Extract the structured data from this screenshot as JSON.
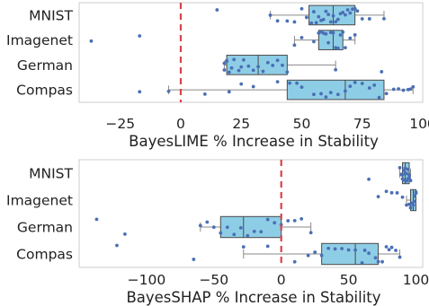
{
  "colors": {
    "box_fill": "#8ecde6",
    "box_edge": "#4a4a4a",
    "point": "#4a6fb5",
    "zero_line": "#d9434b",
    "frame": "#cccccc"
  },
  "chart_data": [
    {
      "type": "boxplot",
      "xlabel": "BayesLIME % Increase in Stability",
      "categories": [
        "MNIST",
        "Imagenet",
        "German",
        "Compas"
      ],
      "xlim": [
        -42,
        100
      ],
      "xticks": [
        -25,
        0,
        25,
        50,
        75,
        100
      ],
      "reference_line_x": 0,
      "grid": false,
      "boxes": [
        {
          "label": "MNIST",
          "whisker_low": 37,
          "q1": 53,
          "median": 63,
          "q3": 72,
          "whisker_high": 84
        },
        {
          "label": "Imagenet",
          "whisker_low": 47,
          "q1": 57,
          "median": 63,
          "q3": 67,
          "whisker_high": 72
        },
        {
          "label": "German",
          "whisker_low": 18,
          "q1": 19,
          "median": 32,
          "q3": 44,
          "whisker_high": 64
        },
        {
          "label": "Compas",
          "whisker_low": -5,
          "q1": 44,
          "median": 68,
          "q3": 84,
          "whisker_high": 96
        }
      ],
      "points": [
        {
          "label": "MNIST",
          "x": [
            15,
            37,
            40,
            44,
            47,
            50,
            52,
            54,
            55,
            56,
            57,
            58,
            59,
            60,
            61,
            62,
            63,
            64,
            65,
            66,
            67,
            68,
            69,
            70,
            71,
            72,
            73,
            75,
            78,
            84
          ]
        },
        {
          "label": "Imagenet",
          "x": [
            -37,
            -17,
            47,
            50,
            55,
            57,
            58,
            59,
            60,
            61,
            62,
            63,
            64,
            65,
            66,
            67,
            68,
            70,
            72
          ]
        },
        {
          "label": "German",
          "x": [
            20,
            18,
            19,
            21,
            22,
            24,
            26,
            28,
            30,
            32,
            34,
            36,
            38,
            40,
            42,
            44,
            18,
            19,
            25,
            64,
            83
          ]
        },
        {
          "label": "Compas",
          "x": [
            -17,
            -5,
            10,
            20,
            25,
            30,
            40,
            45,
            48,
            50,
            55,
            58,
            60,
            62,
            65,
            68,
            70,
            72,
            75,
            78,
            80,
            82,
            85,
            88,
            90,
            92,
            94,
            95,
            96
          ]
        }
      ]
    },
    {
      "type": "boxplot",
      "xlabel": "BayesSHAP % Increase in Stability",
      "categories": [
        "MNIST",
        "Imagenet",
        "German",
        "Compas"
      ],
      "xlim": [
        -150,
        105
      ],
      "xticks": [
        -100,
        -50,
        0,
        50,
        100
      ],
      "reference_line_x": 0,
      "grid": false,
      "boxes": [
        {
          "label": "MNIST",
          "whisker_low": 88,
          "q1": 90,
          "median": 92,
          "q3": 95,
          "whisker_high": 96
        },
        {
          "label": "Imagenet",
          "whisker_low": 93,
          "q1": 96,
          "median": 98,
          "q3": 100,
          "whisker_high": 100
        },
        {
          "label": "German",
          "whisker_low": -60,
          "q1": -45,
          "median": -28,
          "q3": 0,
          "whisker_high": 22
        },
        {
          "label": "Compas",
          "whisker_low": -28,
          "q1": 30,
          "median": 55,
          "q3": 72,
          "whisker_high": 88
        }
      ],
      "points": [
        {
          "label": "MNIST",
          "x": [
            65,
            88,
            89,
            90,
            90,
            91,
            91,
            92,
            92,
            93,
            93,
            94,
            94,
            95,
            95,
            96
          ]
        },
        {
          "label": "Imagenet",
          "x": [
            72,
            78,
            82,
            86,
            90,
            93,
            95,
            96,
            97,
            98,
            99,
            99,
            100,
            100
          ]
        },
        {
          "label": "German",
          "x": [
            -137,
            -116,
            -60,
            -55,
            -50,
            -45,
            -40,
            -35,
            -30,
            -25,
            -20,
            -15,
            -10,
            -5,
            0,
            5,
            10,
            15,
            22
          ]
        },
        {
          "label": "Compas",
          "x": [
            -122,
            -65,
            -28,
            -10,
            10,
            20,
            25,
            30,
            35,
            40,
            45,
            50,
            55,
            60,
            62,
            65,
            70,
            72,
            75,
            78,
            80,
            82,
            85,
            88
          ]
        }
      ]
    }
  ]
}
